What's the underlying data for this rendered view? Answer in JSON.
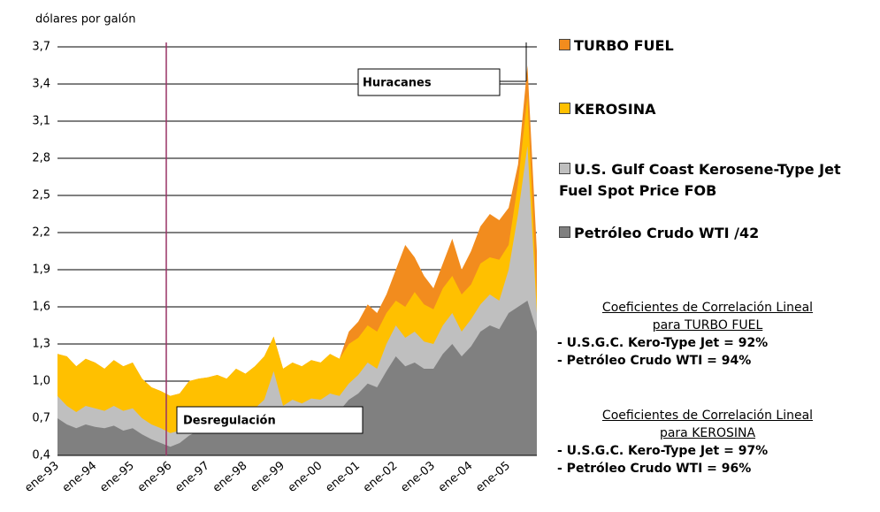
{
  "chart_data": {
    "type": "area",
    "y_label": "dólares por galón",
    "categories": [
      "ene-93",
      null,
      null,
      null,
      "ene-94",
      null,
      null,
      null,
      "ene-95",
      null,
      null,
      null,
      "ene-96",
      null,
      null,
      null,
      "ene-97",
      null,
      null,
      null,
      "ene-98",
      null,
      null,
      null,
      "ene-99",
      null,
      null,
      null,
      "ene-00",
      null,
      null,
      null,
      "ene-01",
      null,
      null,
      null,
      "ene-02",
      null,
      null,
      null,
      "ene-03",
      null,
      null,
      null,
      "ene-04",
      null,
      null,
      null,
      "ene-05",
      null,
      null,
      null
    ],
    "series": [
      {
        "name": "TURBO FUEL",
        "color": "#f28c1e",
        "values": [
          1.22,
          1.2,
          1.12,
          1.18,
          1.15,
          1.1,
          1.17,
          1.12,
          1.15,
          1.02,
          0.95,
          0.92,
          0.88,
          0.9,
          1.0,
          1.02,
          1.03,
          1.05,
          1.02,
          1.1,
          1.06,
          1.12,
          1.2,
          1.36,
          1.1,
          1.15,
          1.12,
          1.17,
          1.15,
          1.22,
          1.18,
          1.4,
          1.48,
          1.62,
          1.55,
          1.7,
          1.9,
          2.1,
          2.0,
          1.85,
          1.75,
          1.95,
          2.15,
          1.9,
          2.05,
          2.25,
          2.35,
          2.3,
          2.4,
          2.75,
          3.55,
          2.05
        ]
      },
      {
        "name": "KEROSINA",
        "color": "#ffc000",
        "values": [
          1.22,
          1.2,
          1.12,
          1.18,
          1.15,
          1.1,
          1.17,
          1.12,
          1.15,
          1.02,
          0.95,
          0.92,
          0.88,
          0.9,
          1.0,
          1.02,
          1.03,
          1.05,
          1.02,
          1.1,
          1.06,
          1.12,
          1.2,
          1.36,
          1.1,
          1.15,
          1.12,
          1.17,
          1.15,
          1.22,
          1.18,
          1.3,
          1.35,
          1.45,
          1.4,
          1.55,
          1.65,
          1.6,
          1.72,
          1.62,
          1.58,
          1.75,
          1.85,
          1.7,
          1.78,
          1.95,
          2.0,
          1.98,
          2.1,
          2.6,
          3.3,
          1.65
        ]
      },
      {
        "name": "U.S. Gulf Coast Kerosene-Type Jet Fuel Spot Price FOB",
        "color": "#bfbfbf",
        "values": [
          0.88,
          0.8,
          0.75,
          0.8,
          0.78,
          0.76,
          0.8,
          0.76,
          0.78,
          0.7,
          0.65,
          0.62,
          0.58,
          0.6,
          0.68,
          0.7,
          0.72,
          0.74,
          0.7,
          0.76,
          0.73,
          0.78,
          0.85,
          1.08,
          0.8,
          0.85,
          0.82,
          0.86,
          0.85,
          0.9,
          0.88,
          0.98,
          1.05,
          1.15,
          1.1,
          1.3,
          1.45,
          1.35,
          1.4,
          1.32,
          1.3,
          1.45,
          1.55,
          1.4,
          1.5,
          1.62,
          1.7,
          1.65,
          1.9,
          2.35,
          2.9,
          1.55
        ]
      },
      {
        "name": "Petróleo Crudo WTI /42",
        "color": "#808080",
        "values": [
          0.7,
          0.65,
          0.62,
          0.65,
          0.63,
          0.62,
          0.64,
          0.6,
          0.62,
          0.57,
          0.53,
          0.5,
          0.47,
          0.5,
          0.56,
          0.6,
          0.62,
          0.63,
          0.6,
          0.65,
          0.62,
          0.66,
          0.72,
          0.78,
          0.68,
          0.72,
          0.7,
          0.74,
          0.73,
          0.78,
          0.76,
          0.85,
          0.9,
          0.98,
          0.95,
          1.08,
          1.2,
          1.12,
          1.15,
          1.1,
          1.1,
          1.22,
          1.3,
          1.2,
          1.28,
          1.4,
          1.45,
          1.42,
          1.55,
          1.6,
          1.65,
          1.4
        ]
      }
    ],
    "ylim": [
      0.4,
      3.7
    ],
    "yticks": [
      {
        "value": 0.4,
        "label": "0,4"
      },
      {
        "value": 0.7,
        "label": "0,7"
      },
      {
        "value": 1.0,
        "label": "1,0"
      },
      {
        "value": 1.3,
        "label": "1,3"
      },
      {
        "value": 1.6,
        "label": "1,6"
      },
      {
        "value": 1.9,
        "label": "1,9"
      },
      {
        "value": 2.2,
        "label": "2,2"
      },
      {
        "value": 2.5,
        "label": "2,5"
      },
      {
        "value": 2.8,
        "label": "2,8"
      },
      {
        "value": 3.1,
        "label": "3,1"
      },
      {
        "value": 3.4,
        "label": "3,4"
      },
      {
        "value": 3.7,
        "label": "3,7"
      }
    ],
    "grid": true,
    "annotations": [
      "Huracanes",
      "Desregulación"
    ],
    "correlations": [
      {
        "heading": "Coeficientes de Correlación Lineal",
        "subheading": "para TURBO FUEL",
        "lines": [
          "- U.S.G.C. Kero-Type Jet = 92%",
          "- Petróleo Crudo WTI = 94%"
        ]
      },
      {
        "heading": "Coeficientes de Correlación Lineal",
        "subheading": "para KEROSINA",
        "lines": [
          "- U.S.G.C. Kero-Type Jet = 97%",
          "- Petróleo Crudo WTI = 96%"
        ]
      }
    ]
  }
}
